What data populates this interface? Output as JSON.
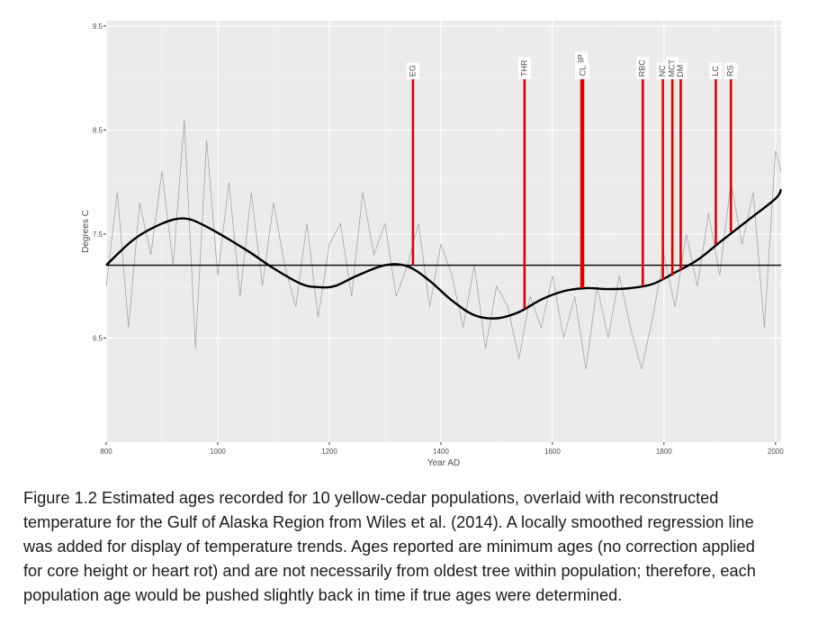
{
  "chart_data": {
    "type": "line",
    "xlabel": "Year AD",
    "ylabel": "Degrees C",
    "xlim": [
      800,
      2010
    ],
    "ylim": [
      5.5,
      9.55
    ],
    "x_ticks": [
      800,
      1000,
      1200,
      1400,
      1600,
      1800,
      2000
    ],
    "y_ticks": [
      6.5,
      7.5,
      8.5,
      9.5
    ],
    "y_tick_labels": [
      "6.5",
      "7.5",
      "8.5",
      "9.5"
    ],
    "grid": true,
    "reference_line": 7.2,
    "colors": {
      "panel": "#ebebeb",
      "grid_major": "#ffffff",
      "grid_minor": "#f5f5f5",
      "raw": "#a6a6a6",
      "smooth": "#000000",
      "reference": "#000000",
      "population": "#e00000"
    },
    "series": [
      {
        "kind": "raw",
        "x": [
          800,
          820,
          840,
          860,
          880,
          900,
          920,
          940,
          960,
          980,
          1000,
          1020,
          1040,
          1060,
          1080,
          1100,
          1120,
          1140,
          1160,
          1180,
          1200,
          1220,
          1240,
          1260,
          1280,
          1300,
          1320,
          1340,
          1360,
          1380,
          1400,
          1420,
          1440,
          1460,
          1480,
          1500,
          1520,
          1540,
          1560,
          1580,
          1600,
          1620,
          1640,
          1660,
          1680,
          1700,
          1720,
          1740,
          1760,
          1780,
          1800,
          1820,
          1840,
          1860,
          1880,
          1900,
          1920,
          1940,
          1960,
          1980,
          2000,
          2010
        ],
        "values": [
          7.0,
          7.9,
          6.6,
          7.8,
          7.3,
          8.1,
          7.2,
          8.6,
          6.4,
          8.4,
          7.1,
          8.0,
          6.9,
          7.9,
          7.0,
          7.8,
          7.2,
          6.8,
          7.6,
          6.7,
          7.4,
          7.6,
          6.9,
          7.9,
          7.3,
          7.6,
          6.9,
          7.2,
          7.6,
          6.8,
          7.4,
          7.1,
          6.6,
          7.2,
          6.4,
          7.0,
          6.8,
          6.3,
          6.9,
          6.6,
          7.1,
          6.5,
          6.9,
          6.2,
          7.0,
          6.5,
          7.1,
          6.6,
          6.2,
          6.7,
          7.3,
          6.8,
          7.5,
          7.0,
          7.7,
          7.1,
          8.0,
          7.4,
          7.9,
          6.6,
          8.3,
          8.1
        ]
      },
      {
        "kind": "smoothed",
        "x": [
          800,
          850,
          900,
          940,
          980,
          1050,
          1100,
          1150,
          1180,
          1210,
          1250,
          1300,
          1340,
          1380,
          1420,
          1460,
          1500,
          1540,
          1580,
          1620,
          1660,
          1700,
          1740,
          1780,
          1820,
          1860,
          1900,
          1950,
          2000,
          2010
        ],
        "values": [
          7.2,
          7.45,
          7.6,
          7.65,
          7.57,
          7.35,
          7.17,
          7.02,
          6.99,
          7.0,
          7.1,
          7.2,
          7.19,
          7.05,
          6.86,
          6.72,
          6.69,
          6.75,
          6.87,
          6.95,
          6.98,
          6.97,
          6.98,
          7.02,
          7.13,
          7.25,
          7.42,
          7.63,
          7.84,
          7.93
        ]
      }
    ],
    "populations": [
      {
        "label": "EG",
        "year": 1350,
        "value": 7.2
      },
      {
        "label": "THR",
        "year": 1550,
        "value": 6.78
      },
      {
        "label": "BCBP",
        "year": 1652,
        "value": 6.98
      },
      {
        "label": "CL",
        "year": 1655,
        "value": 6.98
      },
      {
        "label": "RBC",
        "year": 1762,
        "value": 7.0
      },
      {
        "label": "NC",
        "year": 1798,
        "value": 7.06
      },
      {
        "label": "MCT",
        "year": 1815,
        "value": 7.1
      },
      {
        "label": "DM",
        "year": 1830,
        "value": 7.15
      },
      {
        "label": "LC",
        "year": 1893,
        "value": 7.4
      },
      {
        "label": "RS",
        "year": 1920,
        "value": 7.52
      }
    ]
  },
  "caption": {
    "line1": "Figure 1.2  Estimated ages recorded for 10 yellow-cedar populations, overlaid with reconstructed",
    "line2": "temperature for the Gulf of Alaska Region from Wiles et al. (2014).  A locally smoothed regression line",
    "line3": "was added for display of temperature trends.  Ages reported are minimum ages (no correction applied",
    "line4": "for core height or heart rot) and are not necessarily from oldest tree within population; therefore, each",
    "line5": "population age would be pushed slightly back in time if true ages were determined."
  }
}
